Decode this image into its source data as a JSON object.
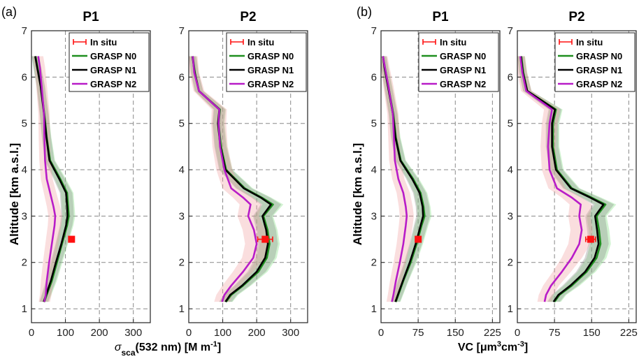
{
  "panel_labels": [
    "(a)",
    "(b)"
  ],
  "ylabel": "Altitude [km a.s.l.]",
  "xlabel_a": {
    "pre": "σ",
    "sub": "sca",
    "post": "(532 nm) [M m",
    "sup": "-1",
    "end": "]"
  },
  "xlabel_b": {
    "pre": "VC [μm",
    "sup1": "3",
    "mid": "cm",
    "sup2": "-3",
    "end": "]"
  },
  "legend": [
    "In situ",
    "GRASP N0",
    "GRASP N1",
    "GRASP N2"
  ],
  "colors": {
    "N0": "#1f8f1f",
    "N1": "#000000",
    "N2": "#b81cc8",
    "insitu": "#ff1010"
  },
  "chart_data": [
    {
      "type": "line",
      "title": "P1",
      "panel": "(a)",
      "xlim": [
        0,
        350
      ],
      "xticks": [
        "0",
        "100",
        "200",
        "300"
      ],
      "xtickvals": [
        0,
        100,
        200,
        300
      ],
      "ylim": [
        0.7,
        7
      ],
      "yticks": [
        "1",
        "2",
        "3",
        "4",
        "5",
        "6",
        "7"
      ],
      "yaxis_label": true,
      "grid": true,
      "legend": "top-right",
      "series": [
        {
          "name": "GRASP N0",
          "alt": [
            1.15,
            1.3,
            1.6,
            2.0,
            2.4,
            2.8,
            3.0,
            3.2,
            3.5,
            3.8,
            4.2,
            4.7,
            5.2,
            5.8,
            6.2,
            6.45
          ],
          "x": [
            38,
            45,
            60,
            75,
            90,
            105,
            110,
            108,
            105,
            85,
            55,
            45,
            38,
            28,
            18,
            12
          ]
        },
        {
          "name": "GRASP N1",
          "alt": [
            1.15,
            1.3,
            1.6,
            2.0,
            2.4,
            2.8,
            3.0,
            3.2,
            3.5,
            3.8,
            4.2,
            4.7,
            5.2,
            5.8,
            6.2,
            6.45
          ],
          "x": [
            36,
            43,
            57,
            72,
            88,
            102,
            106,
            105,
            102,
            82,
            53,
            44,
            37,
            27,
            17,
            11
          ]
        },
        {
          "name": "GRASP N2",
          "alt": [
            1.15,
            1.3,
            1.6,
            2.0,
            2.4,
            2.8,
            3.0,
            3.2,
            3.5,
            3.8,
            4.2,
            4.7,
            5.2,
            5.8,
            6.2,
            6.45
          ],
          "x": [
            38,
            42,
            45,
            52,
            60,
            68,
            70,
            65,
            55,
            45,
            40,
            38,
            37,
            30,
            25,
            20
          ]
        }
      ],
      "in_situ": {
        "alt": 2.5,
        "x": 118,
        "xerr": 4
      }
    },
    {
      "type": "line",
      "title": "P2",
      "panel": "(a)",
      "xlim": [
        0,
        350
      ],
      "xticks": [
        "0",
        "100",
        "200",
        "300"
      ],
      "xtickvals": [
        0,
        100,
        200,
        300
      ],
      "ylim": [
        0.7,
        7
      ],
      "yticks": [
        "1",
        "2",
        "3",
        "4",
        "5",
        "6",
        "7"
      ],
      "yaxis_label": false,
      "grid": true,
      "legend": "top-right",
      "series": [
        {
          "name": "GRASP N0",
          "alt": [
            1.15,
            1.3,
            1.5,
            1.8,
            2.1,
            2.4,
            2.7,
            3.0,
            3.25,
            3.4,
            3.6,
            4.0,
            4.5,
            5.0,
            5.3,
            5.7,
            6.1,
            6.45
          ],
          "x": [
            110,
            125,
            160,
            205,
            230,
            238,
            232,
            220,
            248,
            215,
            165,
            110,
            95,
            88,
            92,
            30,
            18,
            12
          ]
        },
        {
          "name": "GRASP N1",
          "alt": [
            1.15,
            1.3,
            1.5,
            1.8,
            2.1,
            2.4,
            2.7,
            3.0,
            3.25,
            3.4,
            3.6,
            4.0,
            4.5,
            5.0,
            5.3,
            5.7,
            6.1,
            6.45
          ],
          "x": [
            108,
            122,
            157,
            200,
            225,
            233,
            228,
            217,
            242,
            212,
            162,
            108,
            93,
            86,
            90,
            30,
            17,
            11
          ]
        },
        {
          "name": "GRASP N2",
          "alt": [
            1.15,
            1.3,
            1.5,
            1.8,
            2.1,
            2.4,
            2.7,
            3.0,
            3.25,
            3.4,
            3.6,
            4.0,
            4.5,
            5.0,
            5.3,
            5.7,
            6.1,
            6.45
          ],
          "x": [
            98,
            105,
            125,
            160,
            190,
            200,
            192,
            175,
            182,
            160,
            125,
            105,
            92,
            88,
            90,
            30,
            16,
            12
          ]
        }
      ],
      "in_situ": {
        "alt": 2.5,
        "x": 225,
        "xerr": 22
      }
    },
    {
      "type": "line",
      "title": "P1",
      "panel": "(b)",
      "xlim": [
        0,
        240
      ],
      "xticks": [
        "0",
        "75",
        "150",
        "225"
      ],
      "xtickvals": [
        0,
        75,
        150,
        225
      ],
      "ylim": [
        0.7,
        7
      ],
      "yticks": [
        "1",
        "2",
        "3",
        "4",
        "5",
        "6",
        "7"
      ],
      "yaxis_label": true,
      "grid": true,
      "legend": "top-right",
      "series": [
        {
          "name": "GRASP N0",
          "alt": [
            1.15,
            1.3,
            1.6,
            2.0,
            2.4,
            2.8,
            3.0,
            3.2,
            3.5,
            3.8,
            4.2,
            4.7,
            5.2,
            5.8,
            6.2,
            6.45
          ],
          "x": [
            30,
            35,
            45,
            60,
            72,
            82,
            88,
            86,
            80,
            65,
            40,
            30,
            25,
            15,
            8,
            4
          ]
        },
        {
          "name": "GRASP N1",
          "alt": [
            1.15,
            1.3,
            1.6,
            2.0,
            2.4,
            2.8,
            3.0,
            3.2,
            3.5,
            3.8,
            4.2,
            4.7,
            5.2,
            5.8,
            6.2,
            6.45
          ],
          "x": [
            29,
            34,
            44,
            58,
            70,
            80,
            85,
            84,
            78,
            63,
            39,
            29,
            24,
            14,
            7,
            4
          ]
        },
        {
          "name": "GRASP N2",
          "alt": [
            1.15,
            1.3,
            1.6,
            2.0,
            2.4,
            2.8,
            3.0,
            3.2,
            3.5,
            3.8,
            4.2,
            4.7,
            5.2,
            5.8,
            6.2,
            6.45
          ],
          "x": [
            22,
            25,
            30,
            38,
            45,
            50,
            52,
            50,
            45,
            35,
            28,
            26,
            24,
            15,
            8,
            4
          ]
        }
      ],
      "in_situ": {
        "alt": 2.5,
        "x": 75,
        "xerr": 4
      }
    },
    {
      "type": "line",
      "title": "P2",
      "panel": "(b)",
      "xlim": [
        0,
        240
      ],
      "xticks": [
        "0",
        "75",
        "150",
        "225"
      ],
      "xtickvals": [
        0,
        75,
        150,
        225
      ],
      "ylim": [
        0.7,
        7
      ],
      "yticks": [
        "1",
        "2",
        "3",
        "4",
        "5",
        "6",
        "7"
      ],
      "yaxis_label": false,
      "grid": true,
      "legend": "top-right",
      "series": [
        {
          "name": "GRASP N0",
          "alt": [
            1.15,
            1.3,
            1.5,
            1.8,
            2.1,
            2.4,
            2.7,
            3.0,
            3.25,
            3.4,
            3.6,
            4.0,
            4.5,
            5.0,
            5.3,
            5.7,
            6.1,
            6.45
          ],
          "x": [
            75,
            85,
            110,
            140,
            160,
            168,
            165,
            160,
            178,
            150,
            110,
            80,
            72,
            72,
            78,
            20,
            12,
            8
          ]
        },
        {
          "name": "GRASP N1",
          "alt": [
            1.15,
            1.3,
            1.5,
            1.8,
            2.1,
            2.4,
            2.7,
            3.0,
            3.25,
            3.4,
            3.6,
            4.0,
            4.5,
            5.0,
            5.3,
            5.7,
            6.1,
            6.45
          ],
          "x": [
            73,
            83,
            107,
            137,
            156,
            164,
            161,
            157,
            174,
            147,
            108,
            78,
            70,
            70,
            76,
            20,
            11,
            7
          ]
        },
        {
          "name": "GRASP N2",
          "alt": [
            1.15,
            1.3,
            1.5,
            1.8,
            2.1,
            2.4,
            2.7,
            3.0,
            3.25,
            3.4,
            3.6,
            4.0,
            4.5,
            5.0,
            5.3,
            5.7,
            6.1,
            6.45
          ],
          "x": [
            55,
            58,
            68,
            90,
            110,
            125,
            130,
            125,
            128,
            110,
            80,
            65,
            62,
            65,
            70,
            18,
            10,
            6
          ]
        }
      ],
      "in_situ": {
        "alt": 2.5,
        "x": 148,
        "xerr": 10
      }
    }
  ]
}
